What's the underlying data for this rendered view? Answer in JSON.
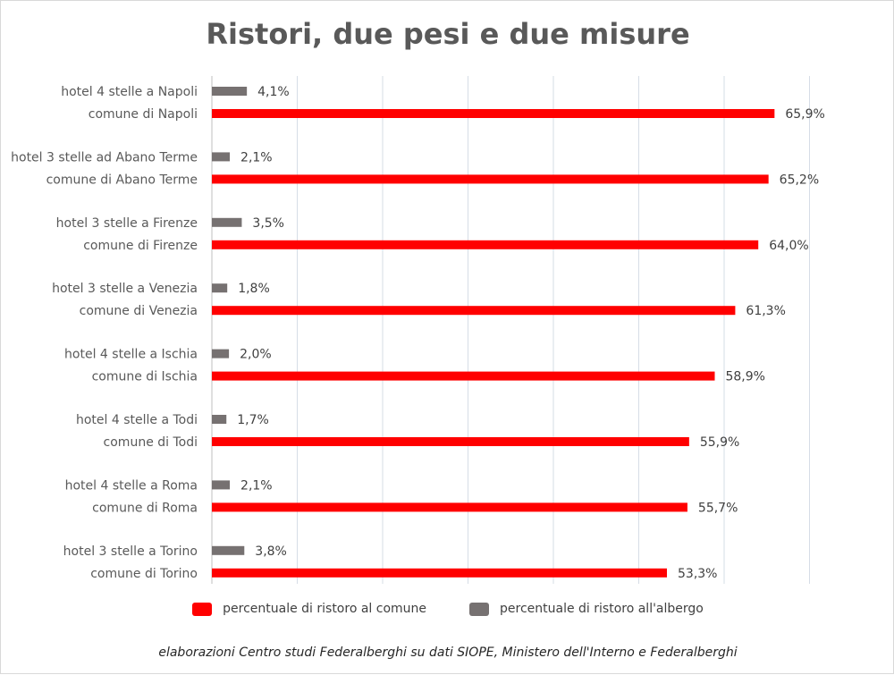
{
  "chart_data": {
    "type": "bar",
    "orientation": "horizontal",
    "title": "Ristori, due pesi e due misure",
    "xlim": [
      0,
      70
    ],
    "grid": true,
    "legend_position": "bottom",
    "colors": {
      "comune": "#ff0000",
      "albergo": "#767171"
    },
    "series": [
      {
        "key": "comune",
        "name": "percentuale di ristoro al comune"
      },
      {
        "key": "albergo",
        "name": "percentuale di ristoro all'albergo"
      }
    ],
    "rows": [
      {
        "label": "hotel 4 stelle a Napoli",
        "value": 4.1,
        "value_label": "4,1%",
        "series": "albergo"
      },
      {
        "label": "comune di Napoli",
        "value": 65.9,
        "value_label": "65,9%",
        "series": "comune"
      },
      {
        "label": "hotel 3 stelle ad Abano Terme",
        "value": 2.1,
        "value_label": "2,1%",
        "series": "albergo"
      },
      {
        "label": "comune di Abano Terme",
        "value": 65.2,
        "value_label": "65,2%",
        "series": "comune"
      },
      {
        "label": "hotel 3 stelle a Firenze",
        "value": 3.5,
        "value_label": "3,5%",
        "series": "albergo"
      },
      {
        "label": "comune di Firenze",
        "value": 64.0,
        "value_label": "64,0%",
        "series": "comune"
      },
      {
        "label": "hotel 3 stelle a Venezia",
        "value": 1.8,
        "value_label": "1,8%",
        "series": "albergo"
      },
      {
        "label": "comune di Venezia",
        "value": 61.3,
        "value_label": "61,3%",
        "series": "comune"
      },
      {
        "label": "hotel 4 stelle a Ischia",
        "value": 2.0,
        "value_label": "2,0%",
        "series": "albergo"
      },
      {
        "label": "comune di Ischia",
        "value": 58.9,
        "value_label": "58,9%",
        "series": "comune"
      },
      {
        "label": "hotel 4 stelle a Todi",
        "value": 1.7,
        "value_label": "1,7%",
        "series": "albergo"
      },
      {
        "label": "comune di Todi",
        "value": 55.9,
        "value_label": "55,9%",
        "series": "comune"
      },
      {
        "label": "hotel 4 stelle a Roma",
        "value": 2.1,
        "value_label": "2,1%",
        "series": "albergo"
      },
      {
        "label": "comune di Roma",
        "value": 55.7,
        "value_label": "55,7%",
        "series": "comune"
      },
      {
        "label": "hotel 3 stelle a Torino",
        "value": 3.8,
        "value_label": "3,8%",
        "series": "albergo"
      },
      {
        "label": "comune di Torino",
        "value": 53.3,
        "value_label": "53,3%",
        "series": "comune"
      }
    ]
  },
  "source_note": "elaborazioni Centro studi Federalberghi su dati SIOPE, Ministero dell'Interno e Federalberghi"
}
